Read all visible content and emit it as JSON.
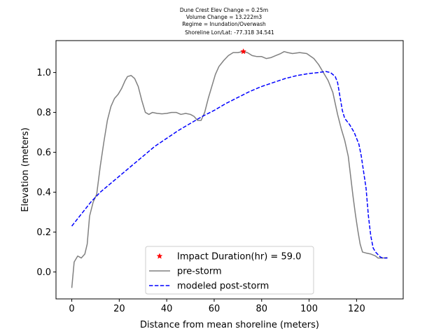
{
  "chart_data": {
    "type": "line",
    "title_lines": [
      "Dune Crest Elev Change = 0.25m",
      "Volume Change = 13.222m3",
      "Regime = Inundation/Overwash",
      "Shoreline Lon/Lat: -77.318 34.541"
    ],
    "xlabel": "Distance from mean shoreline (meters)",
    "ylabel": "Elevation (meters)",
    "xlim": [
      -6.65,
      139.65
    ],
    "ylim": [
      -0.135,
      1.16
    ],
    "xticks": [
      0,
      20,
      40,
      60,
      80,
      100,
      120
    ],
    "yticks": [
      0.0,
      0.2,
      0.4,
      0.6,
      0.8,
      1.0
    ],
    "xtick_labels": [
      "0",
      "20",
      "40",
      "60",
      "80",
      "100",
      "120"
    ],
    "ytick_labels": [
      "0.0",
      "0.2",
      "0.4",
      "0.6",
      "0.8",
      "1.0"
    ],
    "grid": false,
    "legend_position": "lower center",
    "series": [
      {
        "name": "Impact Duration(hr) = 59.0",
        "style": "star-marker",
        "color": "#ff0000",
        "points": [
          [
            72.3,
            1.105
          ]
        ]
      },
      {
        "name": "pre-storm",
        "style": "solid",
        "color": "#808080",
        "points": [
          [
            0,
            -0.08
          ],
          [
            1,
            0.05
          ],
          [
            2.5,
            0.08
          ],
          [
            4,
            0.07
          ],
          [
            5.5,
            0.09
          ],
          [
            6.5,
            0.14
          ],
          [
            7.5,
            0.28
          ],
          [
            9,
            0.35
          ],
          [
            10.5,
            0.39
          ],
          [
            12,
            0.53
          ],
          [
            13.5,
            0.65
          ],
          [
            15,
            0.76
          ],
          [
            16.5,
            0.83
          ],
          [
            18,
            0.87
          ],
          [
            19.5,
            0.89
          ],
          [
            21,
            0.92
          ],
          [
            22.5,
            0.96
          ],
          [
            23.5,
            0.98
          ],
          [
            25,
            0.985
          ],
          [
            26.5,
            0.97
          ],
          [
            28,
            0.93
          ],
          [
            29.5,
            0.86
          ],
          [
            31,
            0.8
          ],
          [
            32.5,
            0.79
          ],
          [
            34,
            0.8
          ],
          [
            36,
            0.795
          ],
          [
            38,
            0.793
          ],
          [
            40,
            0.795
          ],
          [
            42,
            0.8
          ],
          [
            44,
            0.8
          ],
          [
            46,
            0.79
          ],
          [
            48,
            0.795
          ],
          [
            50,
            0.79
          ],
          [
            51.5,
            0.78
          ],
          [
            53,
            0.76
          ],
          [
            54.5,
            0.76
          ],
          [
            56,
            0.8
          ],
          [
            57.5,
            0.87
          ],
          [
            59,
            0.93
          ],
          [
            60.5,
            0.99
          ],
          [
            62,
            1.03
          ],
          [
            64,
            1.06
          ],
          [
            66,
            1.085
          ],
          [
            68,
            1.1
          ],
          [
            70,
            1.1
          ],
          [
            72,
            1.105
          ],
          [
            74,
            1.1
          ],
          [
            76,
            1.085
          ],
          [
            78,
            1.08
          ],
          [
            80,
            1.08
          ],
          [
            82,
            1.07
          ],
          [
            84,
            1.075
          ],
          [
            86,
            1.085
          ],
          [
            88,
            1.095
          ],
          [
            89.5,
            1.105
          ],
          [
            91,
            1.1
          ],
          [
            93,
            1.095
          ],
          [
            96,
            1.1
          ],
          [
            99,
            1.095
          ],
          [
            102,
            1.07
          ],
          [
            104,
            1.04
          ],
          [
            106,
            1.0
          ],
          [
            108,
            0.96
          ],
          [
            110,
            0.9
          ],
          [
            112,
            0.79
          ],
          [
            113.5,
            0.72
          ],
          [
            115,
            0.66
          ],
          [
            116.5,
            0.58
          ],
          [
            117.5,
            0.48
          ],
          [
            118.5,
            0.38
          ],
          [
            119.5,
            0.29
          ],
          [
            120.5,
            0.21
          ],
          [
            121.5,
            0.14
          ],
          [
            122.5,
            0.1
          ],
          [
            124,
            0.095
          ],
          [
            126,
            0.09
          ],
          [
            128,
            0.08
          ],
          [
            129,
            0.07
          ],
          [
            131,
            0.07
          ],
          [
            133,
            0.072
          ]
        ]
      },
      {
        "name": "modeled post-storm",
        "style": "dashed",
        "color": "#0000ff",
        "points": [
          [
            0,
            0.23
          ],
          [
            4,
            0.29
          ],
          [
            8,
            0.35
          ],
          [
            12,
            0.4
          ],
          [
            16,
            0.44
          ],
          [
            20,
            0.48
          ],
          [
            25,
            0.53
          ],
          [
            30,
            0.58
          ],
          [
            35,
            0.63
          ],
          [
            40,
            0.67
          ],
          [
            45,
            0.71
          ],
          [
            50,
            0.745
          ],
          [
            55,
            0.78
          ],
          [
            60,
            0.81
          ],
          [
            65,
            0.845
          ],
          [
            70,
            0.875
          ],
          [
            75,
            0.905
          ],
          [
            80,
            0.93
          ],
          [
            85,
            0.95
          ],
          [
            90,
            0.97
          ],
          [
            95,
            0.985
          ],
          [
            100,
            0.995
          ],
          [
            104,
            1.0
          ],
          [
            107,
            1.005
          ],
          [
            109,
            1.0
          ],
          [
            111,
            0.98
          ],
          [
            112,
            0.95
          ],
          [
            113,
            0.88
          ],
          [
            114,
            0.81
          ],
          [
            115,
            0.77
          ],
          [
            117,
            0.74
          ],
          [
            119,
            0.7
          ],
          [
            121,
            0.64
          ],
          [
            122,
            0.58
          ],
          [
            123,
            0.5
          ],
          [
            124,
            0.42
          ],
          [
            125,
            0.28
          ],
          [
            126,
            0.18
          ],
          [
            127,
            0.12
          ],
          [
            128,
            0.1
          ],
          [
            130,
            0.075
          ],
          [
            131,
            0.07
          ],
          [
            133,
            0.07
          ]
        ]
      }
    ]
  }
}
